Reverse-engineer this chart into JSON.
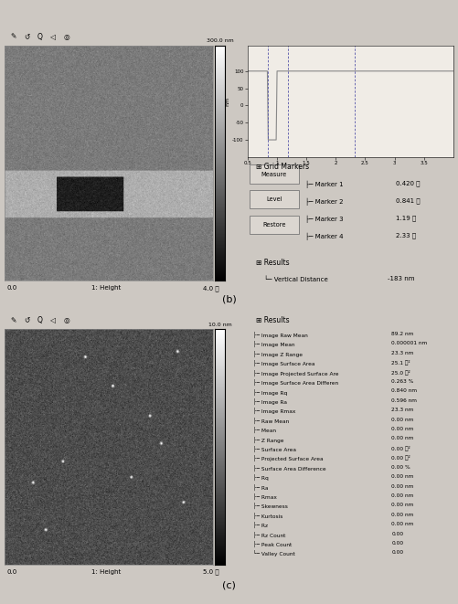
{
  "fig_width": 5.01,
  "fig_height": 6.61,
  "bg_color": "#cdc8c2",
  "panel_b": {
    "label": "(b)",
    "colorbar_top": "300.0 nm",
    "colorbar_bottom": "0.0",
    "axis_label": "1: Height",
    "axis_right": "4.0 向",
    "marker1": "0.420 向",
    "marker2": "0.841 向",
    "marker3": "1.19 向",
    "marker4": "2.33 向",
    "vertical_distance": "-183 nm",
    "buttons": [
      "Measure",
      "Level",
      "Restore"
    ]
  },
  "panel_c": {
    "label": "(c)",
    "colorbar_top": "10.0 nm",
    "colorbar_bottom": "0.0",
    "axis_label": "1: Height",
    "axis_right": "5.0 向",
    "results": [
      [
        "Image Raw Mean",
        "89.2 nm"
      ],
      [
        "Image Mean",
        "0.000001 nm"
      ],
      [
        "Image Z Range",
        "23.3 nm"
      ],
      [
        "Image Surface Area",
        "25.1 向²"
      ],
      [
        "Image Projected Surface Are",
        "25.0 向²"
      ],
      [
        "Image Surface Area Differen",
        "0.263 %"
      ],
      [
        "Image Rq",
        "0.840 nm"
      ],
      [
        "Image Ra",
        "0.596 nm"
      ],
      [
        "Image Rmax",
        "23.3 nm"
      ],
      [
        "Raw Mean",
        "0.00 nm"
      ],
      [
        "Mean",
        "0.00 nm"
      ],
      [
        "Z Range",
        "0.00 nm"
      ],
      [
        "Surface Area",
        "0.00 向²"
      ],
      [
        "Projected Surface Area",
        "0.00 向²"
      ],
      [
        "Surface Area Difference",
        "0.00 %"
      ],
      [
        "Rq",
        "0.00 nm"
      ],
      [
        "Ra",
        "0.00 nm"
      ],
      [
        "Rmax",
        "0.00 nm"
      ],
      [
        "Skewness",
        "0.00 nm"
      ],
      [
        "Kurtosis",
        "0.00 nm"
      ],
      [
        "Rz",
        "0.00 nm"
      ],
      [
        "Rz Count",
        "0.00"
      ],
      [
        "Peak Count",
        "0.00"
      ],
      [
        "Valley Count",
        "0.00"
      ]
    ]
  }
}
